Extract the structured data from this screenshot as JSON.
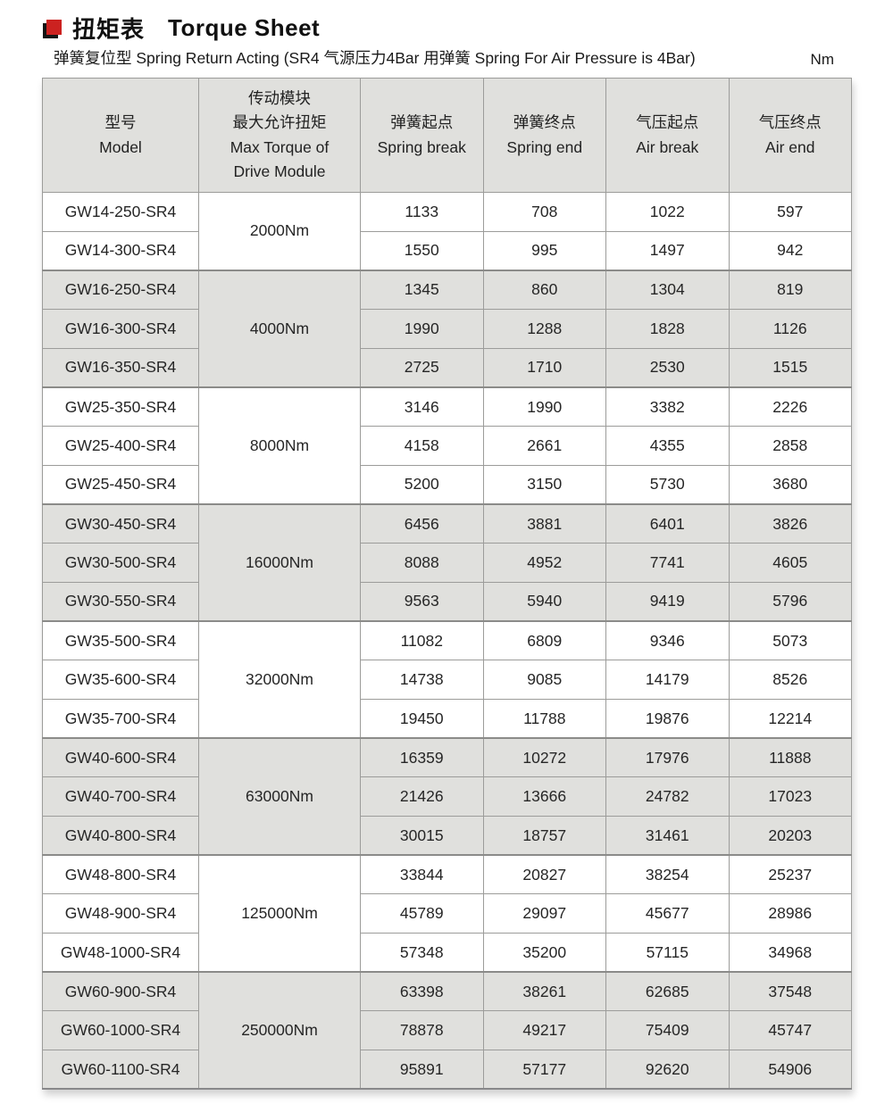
{
  "page": {
    "title_zh": "扭矩表",
    "title_en": "Torque Sheet",
    "subtitle": "弹簧复位型 Spring Return Acting (SR4 气源压力4Bar 用弹簧 Spring For Air Pressure is 4Bar)",
    "unit": "Nm"
  },
  "colors": {
    "accent_red": "#cc2220",
    "row_shade": "#e0e0dd",
    "border_gray": "#9c9c9a"
  },
  "table": {
    "headers": [
      {
        "id": "model",
        "lines": [
          "型号",
          "Model"
        ]
      },
      {
        "id": "max_torque",
        "lines": [
          "传动模块",
          "最大允许扭矩",
          "Max Torque of",
          "Drive Module"
        ]
      },
      {
        "id": "spring_break",
        "lines": [
          "弹簧起点",
          "Spring break"
        ]
      },
      {
        "id": "spring_end",
        "lines": [
          "弹簧终点",
          "Spring end"
        ]
      },
      {
        "id": "air_break",
        "lines": [
          "气压起点",
          "Air break"
        ]
      },
      {
        "id": "air_end",
        "lines": [
          "气压终点",
          "Air end"
        ]
      }
    ],
    "groups": [
      {
        "torque": "2000Nm",
        "shaded": false,
        "rows": [
          {
            "model": "GW14-250-SR4",
            "spring_break": "1133",
            "spring_end": "708",
            "air_break": "1022",
            "air_end": "597"
          },
          {
            "model": "GW14-300-SR4",
            "spring_break": "1550",
            "spring_end": "995",
            "air_break": "1497",
            "air_end": "942"
          }
        ]
      },
      {
        "torque": "4000Nm",
        "shaded": true,
        "rows": [
          {
            "model": "GW16-250-SR4",
            "spring_break": "1345",
            "spring_end": "860",
            "air_break": "1304",
            "air_end": "819"
          },
          {
            "model": "GW16-300-SR4",
            "spring_break": "1990",
            "spring_end": "1288",
            "air_break": "1828",
            "air_end": "1126"
          },
          {
            "model": "GW16-350-SR4",
            "spring_break": "2725",
            "spring_end": "1710",
            "air_break": "2530",
            "air_end": "1515"
          }
        ]
      },
      {
        "torque": "8000Nm",
        "shaded": false,
        "rows": [
          {
            "model": "GW25-350-SR4",
            "spring_break": "3146",
            "spring_end": "1990",
            "air_break": "3382",
            "air_end": "2226"
          },
          {
            "model": "GW25-400-SR4",
            "spring_break": "4158",
            "spring_end": "2661",
            "air_break": "4355",
            "air_end": "2858"
          },
          {
            "model": "GW25-450-SR4",
            "spring_break": "5200",
            "spring_end": "3150",
            "air_break": "5730",
            "air_end": "3680"
          }
        ]
      },
      {
        "torque": "16000Nm",
        "shaded": true,
        "rows": [
          {
            "model": "GW30-450-SR4",
            "spring_break": "6456",
            "spring_end": "3881",
            "air_break": "6401",
            "air_end": "3826"
          },
          {
            "model": "GW30-500-SR4",
            "spring_break": "8088",
            "spring_end": "4952",
            "air_break": "7741",
            "air_end": "4605"
          },
          {
            "model": "GW30-550-SR4",
            "spring_break": "9563",
            "spring_end": "5940",
            "air_break": "9419",
            "air_end": "5796"
          }
        ]
      },
      {
        "torque": "32000Nm",
        "shaded": false,
        "rows": [
          {
            "model": "GW35-500-SR4",
            "spring_break": "11082",
            "spring_end": "6809",
            "air_break": "9346",
            "air_end": "5073"
          },
          {
            "model": "GW35-600-SR4",
            "spring_break": "14738",
            "spring_end": "9085",
            "air_break": "14179",
            "air_end": "8526"
          },
          {
            "model": "GW35-700-SR4",
            "spring_break": "19450",
            "spring_end": "11788",
            "air_break": "19876",
            "air_end": "12214"
          }
        ]
      },
      {
        "torque": "63000Nm",
        "shaded": true,
        "rows": [
          {
            "model": "GW40-600-SR4",
            "spring_break": "16359",
            "spring_end": "10272",
            "air_break": "17976",
            "air_end": "11888"
          },
          {
            "model": "GW40-700-SR4",
            "spring_break": "21426",
            "spring_end": "13666",
            "air_break": "24782",
            "air_end": "17023"
          },
          {
            "model": "GW40-800-SR4",
            "spring_break": "30015",
            "spring_end": "18757",
            "air_break": "31461",
            "air_end": "20203"
          }
        ]
      },
      {
        "torque": "125000Nm",
        "shaded": false,
        "rows": [
          {
            "model": "GW48-800-SR4",
            "spring_break": "33844",
            "spring_end": "20827",
            "air_break": "38254",
            "air_end": "25237"
          },
          {
            "model": "GW48-900-SR4",
            "spring_break": "45789",
            "spring_end": "29097",
            "air_break": "45677",
            "air_end": "28986"
          },
          {
            "model": "GW48-1000-SR4",
            "spring_break": "57348",
            "spring_end": "35200",
            "air_break": "57115",
            "air_end": "34968"
          }
        ]
      },
      {
        "torque": "250000Nm",
        "shaded": true,
        "rows": [
          {
            "model": "GW60-900-SR4",
            "spring_break": "63398",
            "spring_end": "38261",
            "air_break": "62685",
            "air_end": "37548"
          },
          {
            "model": "GW60-1000-SR4",
            "spring_break": "78878",
            "spring_end": "49217",
            "air_break": "75409",
            "air_end": "45747"
          },
          {
            "model": "GW60-1100-SR4",
            "spring_break": "95891",
            "spring_end": "57177",
            "air_break": "92620",
            "air_end": "54906"
          }
        ]
      }
    ]
  }
}
